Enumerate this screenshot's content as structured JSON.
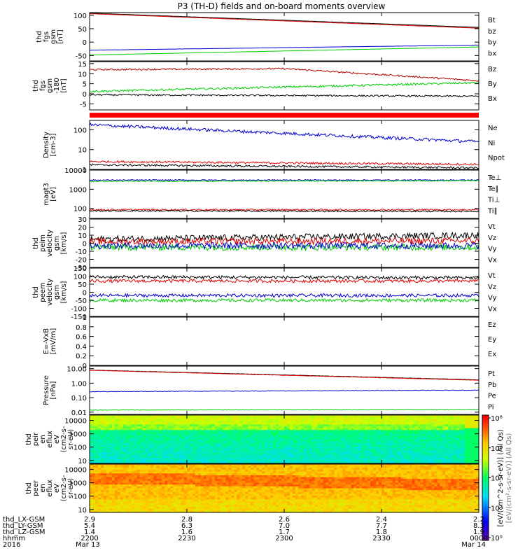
{
  "title": "P3 (TH-D) fields and on-board moments overview",
  "colors": {
    "black": "#000000",
    "red": "#e00000",
    "green": "#00cc00",
    "blue": "#0000cc",
    "darkred": "#b00000"
  },
  "chart_data": [
    {
      "id": "fgs_gsm",
      "type": "line",
      "ylabel": [
        "thd",
        "fgs",
        "gsm",
        "[nT]"
      ],
      "ylim": [
        -70,
        110
      ],
      "yticks": [
        -50,
        0,
        50,
        100
      ],
      "series": [
        {
          "name": "Bt",
          "color": "black",
          "start": 108,
          "end": 55,
          "noise": 0.3
        },
        {
          "name": "bz",
          "color": "red",
          "start": 106,
          "end": 52,
          "noise": 0.3
        },
        {
          "name": "by",
          "color": "green",
          "start": -48,
          "end": -18,
          "noise": 0.3
        },
        {
          "name": "bx",
          "color": "blue",
          "start": -30,
          "end": -11,
          "noise": 0.3
        }
      ]
    },
    {
      "id": "fgs_gse_dev",
      "type": "line",
      "ylabel": [
        "thd",
        "fgs",
        "gsm",
        "-180",
        "[nT]"
      ],
      "ylim": [
        -8,
        16
      ],
      "yticks": [
        -5,
        0,
        5,
        10,
        15
      ],
      "series": [
        {
          "name": "Bz",
          "color": "darkred",
          "start": 12,
          "mid": 12.5,
          "end": 6.5,
          "noise": 0.4
        },
        {
          "name": "By",
          "color": "green",
          "start": 1.2,
          "end": 5.5,
          "noise": 0.5
        },
        {
          "name": "Bx",
          "color": "black",
          "start": -0.5,
          "end": -1.2,
          "noise": 0.4
        }
      ]
    },
    {
      "id": "density",
      "type": "line",
      "ylabel": [
        "Density",
        "[cm-3]"
      ],
      "log": true,
      "ylim": [
        1,
        300
      ],
      "yticks": [
        1,
        10,
        100
      ],
      "series": [
        {
          "name": "Ne",
          "color": "red",
          "start": 2.5,
          "end": 1.8,
          "noise": 0.05
        },
        {
          "name": "Ni",
          "color": "black",
          "start": 1.7,
          "end": 1.2,
          "noise": 0.05
        },
        {
          "name": "Npot",
          "color": "blue",
          "start": 180,
          "end": 25,
          "noise": 0.08
        }
      ]
    },
    {
      "id": "temperature",
      "type": "line",
      "ylabel": [
        "magt3",
        "[eV]"
      ],
      "log": true,
      "ylim": [
        30,
        10000
      ],
      "yticks": [
        100,
        1000,
        10000
      ],
      "series": [
        {
          "name": "Te⊥",
          "color": "red",
          "start": 85,
          "end": 85,
          "noise": 0.04
        },
        {
          "name": "Te∥",
          "color": "black",
          "start": 75,
          "end": 70,
          "noise": 0.04
        },
        {
          "name": "Ti⊥",
          "color": "blue",
          "start": 3000,
          "end": 3000,
          "noise": 0.03
        },
        {
          "name": "Ti∥",
          "color": "green",
          "start": 2600,
          "end": 2800,
          "noise": 0.03
        }
      ]
    },
    {
      "id": "peim_velocity",
      "type": "line",
      "ylabel": [
        "thd",
        "peim",
        "velocity",
        "gsm",
        "[km/s]"
      ],
      "ylim": [
        -30,
        30
      ],
      "yticks": [
        -30,
        -20,
        -10,
        0,
        10,
        20,
        30
      ],
      "series": [
        {
          "name": "Vt",
          "color": "black",
          "start": 5,
          "end": 10,
          "noise": 4
        },
        {
          "name": "Vz",
          "color": "red",
          "start": 2,
          "end": 3,
          "noise": 4
        },
        {
          "name": "Vy",
          "color": "green",
          "start": -5,
          "end": -5,
          "noise": 4
        },
        {
          "name": "Vx",
          "color": "blue",
          "start": -3,
          "end": -3,
          "noise": 4
        }
      ]
    },
    {
      "id": "peem_velocity",
      "type": "line",
      "ylabel": [
        "thd",
        "peem",
        "velocity",
        "gsm",
        "[km/s]"
      ],
      "ylim": [
        -150,
        150
      ],
      "yticks": [
        -150,
        -100,
        -50,
        0,
        50,
        100,
        150
      ],
      "series": [
        {
          "name": "Vt",
          "color": "black",
          "start": 95,
          "end": 90,
          "noise": 10
        },
        {
          "name": "Vz",
          "color": "red",
          "start": 70,
          "end": 70,
          "noise": 10
        },
        {
          "name": "Vy",
          "color": "blue",
          "start": -20,
          "end": -20,
          "noise": 10
        },
        {
          "name": "Vx",
          "color": "green",
          "start": -50,
          "end": -50,
          "noise": 10
        }
      ]
    },
    {
      "id": "efield",
      "type": "line",
      "ylabel": [
        "E=-VxB",
        "[mV/m]"
      ],
      "ylim": [
        0,
        1
      ],
      "yticks": [
        0,
        0.2,
        0.4,
        0.6,
        0.8,
        1.0
      ],
      "series": [
        {
          "name": "Ez",
          "color": "red",
          "values": []
        },
        {
          "name": "Ey",
          "color": "green",
          "values": []
        },
        {
          "name": "Ex",
          "color": "blue",
          "values": []
        }
      ]
    },
    {
      "id": "pressure",
      "type": "line",
      "ylabel": [
        "Pressure",
        "[nPa]"
      ],
      "log": true,
      "ylim": [
        0.007,
        15
      ],
      "yticks": [
        0.01,
        0.1,
        1.0,
        10.0
      ],
      "ytick_labels": [
        "0.01",
        "0.10",
        "1.00",
        "10.00"
      ],
      "series": [
        {
          "name": "Pt",
          "color": "black",
          "start": 8,
          "end": 1.7,
          "noise": 0.01
        },
        {
          "name": "Pb",
          "color": "red",
          "start": 7.7,
          "end": 1.6,
          "noise": 0.01
        },
        {
          "name": "Pe",
          "color": "green",
          "start": 0.014,
          "end": 0.015,
          "noise": 0.02
        },
        {
          "name": "Pi",
          "color": "blue",
          "start": 0.26,
          "end": 0.33,
          "noise": 0.02
        }
      ]
    },
    {
      "id": "peir_spec",
      "type": "heatmap",
      "ylabel": [
        "thd",
        "peir",
        "en",
        "eflux",
        "eV",
        "(cm2-s-",
        "sr-eV)"
      ],
      "log": true,
      "ylim": [
        6,
        25000
      ],
      "yticks": [
        10,
        100,
        1000,
        10000
      ],
      "ytick_labels": [
        "10",
        "100",
        "1000",
        "10000"
      ],
      "palette": "ion"
    },
    {
      "id": "peer_spec",
      "type": "heatmap",
      "ylabel": [
        "thd",
        "peer",
        "en",
        "eflux",
        "eV",
        "(cm2-s-",
        "sr-eV)"
      ],
      "log": true,
      "ylim": [
        6,
        25000
      ],
      "yticks": [
        10,
        100,
        1000,
        10000
      ],
      "ytick_labels": [
        "10",
        "100",
        "1000",
        "10000"
      ],
      "palette": "electron"
    }
  ],
  "colorbar": {
    "label": "[eV/(cm^2-s-sr-eV)] (All Qs)",
    "ticks": [
      "10⁸",
      "10⁶",
      "10⁴",
      "10²",
      "10⁰"
    ],
    "overlap_label": "[eV/(cm²-s-sr-eV)] (All Qs)"
  },
  "x_axis": {
    "row_labels": [
      "thd_LX-GSM",
      "thd_LY-GSM",
      "thd_LZ-GSM",
      "hhmm",
      "2016"
    ],
    "ticks": [
      {
        "frac": 0.0,
        "values": [
          "2.9",
          "5.4",
          "1.4",
          "2200",
          "Mar 13"
        ]
      },
      {
        "frac": 0.25,
        "values": [
          "2.8",
          "6.3",
          "1.6",
          "2230",
          ""
        ]
      },
      {
        "frac": 0.5,
        "values": [
          "2.6",
          "7.0",
          "1.7",
          "2300",
          ""
        ]
      },
      {
        "frac": 0.75,
        "values": [
          "2.4",
          "7.7",
          "1.8",
          "2330",
          ""
        ]
      },
      {
        "frac": 1.0,
        "values": [
          "2.2",
          "8.3",
          "1.9",
          "0000",
          "Mar 14"
        ]
      }
    ]
  }
}
